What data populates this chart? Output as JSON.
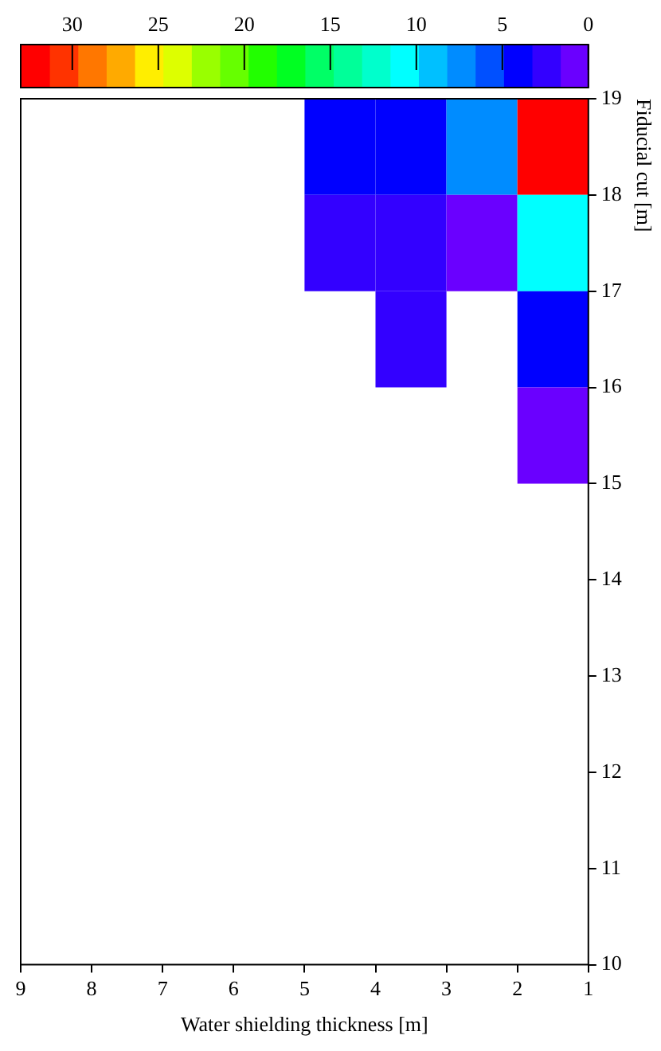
{
  "chart_data": {
    "type": "heatmap",
    "xlabel": "Water shielding thickness [m]",
    "ylabel": "Fiducial cut [m]",
    "x": [
      4.5,
      3.5,
      2.5,
      1.5
    ],
    "y": [
      18.5,
      17.5,
      16.5,
      15.5
    ],
    "cells": [
      [
        4,
        4,
        7.5,
        32
      ],
      [
        2.5,
        2.5,
        1,
        10.5
      ],
      [
        null,
        2.5,
        null,
        4
      ],
      [
        null,
        null,
        null,
        1
      ]
    ],
    "xlim": [
      9,
      1
    ],
    "xticks": [
      9,
      8,
      7,
      6,
      5,
      4,
      3,
      2,
      1
    ],
    "ylim": [
      10,
      19
    ],
    "yticks": [
      10,
      11,
      12,
      13,
      14,
      15,
      16,
      17,
      18,
      19
    ],
    "clim": [
      0,
      33
    ],
    "cticks": [
      0,
      5,
      10,
      15,
      20,
      25,
      30
    ]
  }
}
